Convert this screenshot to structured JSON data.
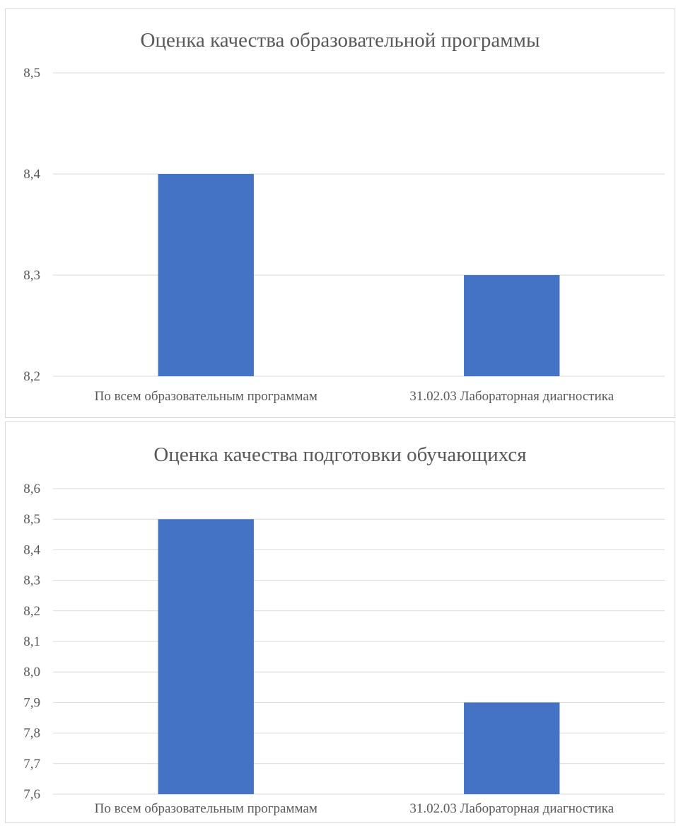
{
  "chart_data": [
    {
      "type": "bar",
      "title": "Оценка качества образовательной программы",
      "categories": [
        "По всем образовательным программам",
        "31.02.03 Лабораторная диагностика"
      ],
      "values": [
        8.4,
        8.3
      ],
      "ylim": [
        8.2,
        8.5
      ],
      "yticks": [
        "8,2",
        "8,3",
        "8,4",
        "8,5"
      ],
      "ytick_values": [
        8.2,
        8.3,
        8.4,
        8.5
      ],
      "grid": true,
      "bar_color": "#4472C4",
      "legend": "none"
    },
    {
      "type": "bar",
      "title": "Оценка качества подготовки обучающихся",
      "categories": [
        "По всем образовательным программам",
        "31.02.03 Лабораторная диагностика"
      ],
      "values": [
        8.5,
        7.9
      ],
      "ylim": [
        7.6,
        8.6
      ],
      "yticks": [
        "7,6",
        "7,7",
        "7,8",
        "7,9",
        "8,0",
        "8,1",
        "8,2",
        "8,3",
        "8,4",
        "8,5",
        "8,6"
      ],
      "ytick_values": [
        7.6,
        7.7,
        7.8,
        7.9,
        8.0,
        8.1,
        8.2,
        8.3,
        8.4,
        8.5,
        8.6
      ],
      "grid": true,
      "bar_color": "#4472C4",
      "legend": "none"
    }
  ]
}
